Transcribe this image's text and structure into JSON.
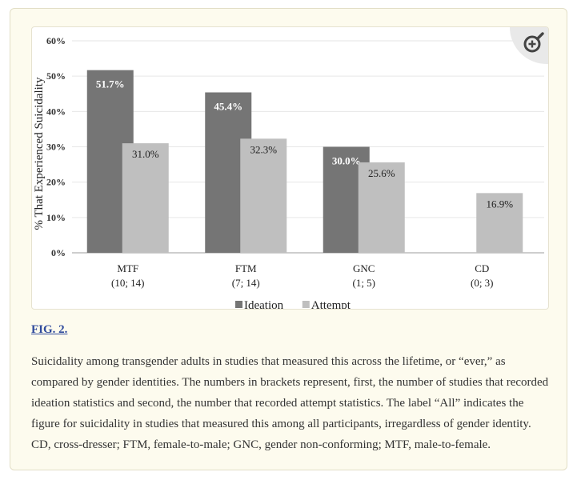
{
  "figure": {
    "label": "FIG. 2.",
    "caption": "Suicidality among transgender adults in studies that measured this across the lifetime, or “ever,” as compared by gender identities. The numbers in brackets represent, first, the number of studies that recorded ideation statistics and second, the number that recorded attempt statistics. The label “All” indicates the figure for suicidality in studies that measured this among all participants, irregardless of gender identity. CD, cross-dresser; FTM, female-to-male; GNC, gender non-conforming; MTF, male-to-female.",
    "zoom_icon": "zoom-in-magnifier-icon"
  },
  "chart_data": {
    "type": "bar",
    "title": "",
    "xlabel": "",
    "ylabel": "% That Experienced Suicidality",
    "ylim": [
      0,
      60
    ],
    "yticks": [
      "0%",
      "10%",
      "20%",
      "30%",
      "40%",
      "50%",
      "60%"
    ],
    "categories": [
      "MTF",
      "FTM",
      "GNC",
      "CD"
    ],
    "category_counts": [
      "(10; 14)",
      "(7; 14)",
      "(1; 5)",
      "(0; 3)"
    ],
    "series": [
      {
        "name": "Ideation",
        "color": "#757575",
        "values": [
          51.7,
          45.4,
          30.0,
          null
        ],
        "labels": [
          "51.7%",
          "45.4%",
          "30.0%",
          ""
        ]
      },
      {
        "name": "Attempt",
        "color": "#bfbfbf",
        "values": [
          31.0,
          32.3,
          25.6,
          16.9
        ],
        "labels": [
          "31.0%",
          "32.3%",
          "25.6%",
          "16.9%"
        ]
      }
    ],
    "grid": true,
    "legend_position": "bottom"
  }
}
